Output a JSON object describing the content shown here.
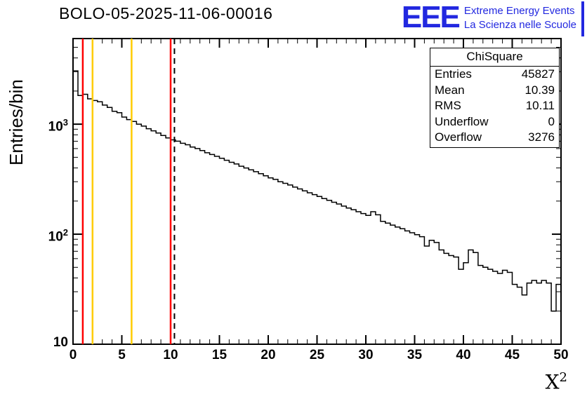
{
  "page": {
    "title": "BOLO-05-2025-11-06-00016"
  },
  "logo": {
    "acronym": "EEE",
    "line1": "Extreme Energy Events",
    "line2": "La Scienza nelle Scuole",
    "color": "#2228e0"
  },
  "axes": {
    "ylabel": "Entries/bin",
    "xlabel_base": "X",
    "xlabel_exp": "2"
  },
  "stats": {
    "title": "ChiSquare",
    "rows": [
      {
        "label": "Entries",
        "value": "45827"
      },
      {
        "label": "Mean",
        "value": "10.39"
      },
      {
        "label": "RMS",
        "value": "10.11"
      },
      {
        "label": "Underflow",
        "value": "0"
      },
      {
        "label": "Overflow",
        "value": "3276"
      }
    ]
  },
  "chart_data": {
    "type": "bar",
    "style": "step-histogram",
    "title": "BOLO-05-2025-11-06-00016",
    "xlabel": "X^2",
    "ylabel": "Entries/bin",
    "xlim": [
      0,
      50
    ],
    "ylim": [
      10,
      6000
    ],
    "yscale": "log",
    "grid": false,
    "bin_start": 0,
    "bin_width": 0.5,
    "hist_color": "#000000",
    "x_major_ticks": [
      0,
      5,
      10,
      15,
      20,
      25,
      30,
      35,
      40,
      45,
      50
    ],
    "x_minor_step": 1,
    "y_major_ticks": [
      10,
      100,
      1000
    ],
    "values": [
      3050,
      1820,
      1870,
      1700,
      1640,
      1600,
      1490,
      1420,
      1310,
      1270,
      1160,
      1100,
      1060,
      1000,
      960,
      910,
      870,
      830,
      790,
      750,
      720,
      700,
      670,
      650,
      620,
      600,
      575,
      550,
      530,
      510,
      490,
      470,
      450,
      435,
      415,
      400,
      385,
      370,
      355,
      340,
      325,
      315,
      300,
      290,
      280,
      268,
      258,
      248,
      238,
      229,
      220,
      211,
      203,
      195,
      188,
      180,
      173,
      167,
      160,
      154,
      148,
      160,
      150,
      131,
      126,
      121,
      116,
      112,
      107,
      103,
      99,
      95,
      78,
      88,
      84,
      72,
      67,
      64,
      62,
      48,
      55,
      72,
      68,
      52,
      50,
      48,
      46,
      44,
      47,
      45,
      35,
      33,
      28,
      36,
      38,
      36,
      38,
      36,
      20,
      35
    ],
    "vlines": [
      {
        "x": 1,
        "color": "#ff0000",
        "style": "solid"
      },
      {
        "x": 2,
        "color": "#ffcc00",
        "style": "solid"
      },
      {
        "x": 6,
        "color": "#ffcc00",
        "style": "solid"
      },
      {
        "x": 10,
        "color": "#ff0000",
        "style": "solid"
      },
      {
        "x": 10.39,
        "color": "#000000",
        "style": "dashed"
      }
    ]
  }
}
